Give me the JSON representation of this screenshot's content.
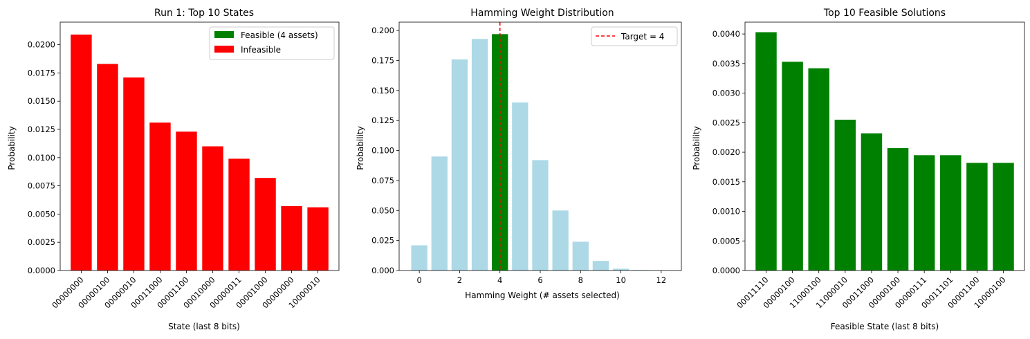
{
  "chart_data": [
    {
      "type": "bar",
      "title": "Run 1: Top 10 States",
      "xlabel": "State (last 8 bits)",
      "ylabel": "Probability",
      "ylim": [
        0,
        0.022
      ],
      "yticks": [
        "0.0000",
        "0.0025",
        "0.0050",
        "0.0075",
        "0.0100",
        "0.0125",
        "0.0150",
        "0.0175",
        "0.0200"
      ],
      "categories": [
        "00000000",
        "00000100",
        "00000010",
        "00011000",
        "00001100",
        "00010000",
        "00000011",
        "00001000",
        "00000000",
        "10000010"
      ],
      "values": [
        0.0209,
        0.0183,
        0.0171,
        0.0131,
        0.0123,
        0.011,
        0.0099,
        0.0082,
        0.0057,
        0.0056
      ],
      "bar_color": "#ff0000",
      "legend": [
        {
          "label": "Feasible (4 assets)",
          "color": "#008000"
        },
        {
          "label": "Infeasible",
          "color": "#ff0000"
        }
      ],
      "legend_position": "upper right",
      "grid": false
    },
    {
      "type": "bar",
      "title": "Hamming Weight Distribution",
      "xlabel": "Hamming Weight (# assets selected)",
      "ylabel": "Probability",
      "ylim": [
        0,
        0.207
      ],
      "xlim": [
        -1,
        13
      ],
      "xticks": [
        "0",
        "2",
        "4",
        "6",
        "8",
        "10",
        "12"
      ],
      "yticks": [
        "0.000",
        "0.025",
        "0.050",
        "0.075",
        "0.100",
        "0.125",
        "0.150",
        "0.175",
        "0.200"
      ],
      "x": [
        0,
        1,
        2,
        3,
        4,
        5,
        6,
        7,
        8,
        9,
        10,
        11,
        12
      ],
      "values": [
        0.021,
        0.095,
        0.176,
        0.193,
        0.197,
        0.14,
        0.092,
        0.05,
        0.024,
        0.008,
        0.0015,
        0.0004,
        0.0001
      ],
      "bar_color": "#add8e6",
      "highlight": {
        "x": 4,
        "color": "#008000"
      },
      "target_line": {
        "x": 4,
        "label": "Target = 4",
        "color": "#ff0000"
      },
      "legend_position": "upper right",
      "grid": false
    },
    {
      "type": "bar",
      "title": "Top 10 Feasible Solutions",
      "xlabel": "Feasible State (last 8 bits)",
      "ylabel": "Probability",
      "ylim": [
        0,
        0.0042
      ],
      "yticks": [
        "0.0000",
        "0.0005",
        "0.0010",
        "0.0015",
        "0.0020",
        "0.0025",
        "0.0030",
        "0.0035",
        "0.0040"
      ],
      "categories": [
        "00011110",
        "00000100",
        "11000100",
        "11000010",
        "00011000",
        "00000100",
        "00000111",
        "00011101",
        "00001100",
        "10000100"
      ],
      "values": [
        0.00403,
        0.00353,
        0.00342,
        0.00255,
        0.00232,
        0.00207,
        0.00195,
        0.00195,
        0.00182,
        0.00182
      ],
      "bar_color": "#008000",
      "grid": false
    }
  ]
}
